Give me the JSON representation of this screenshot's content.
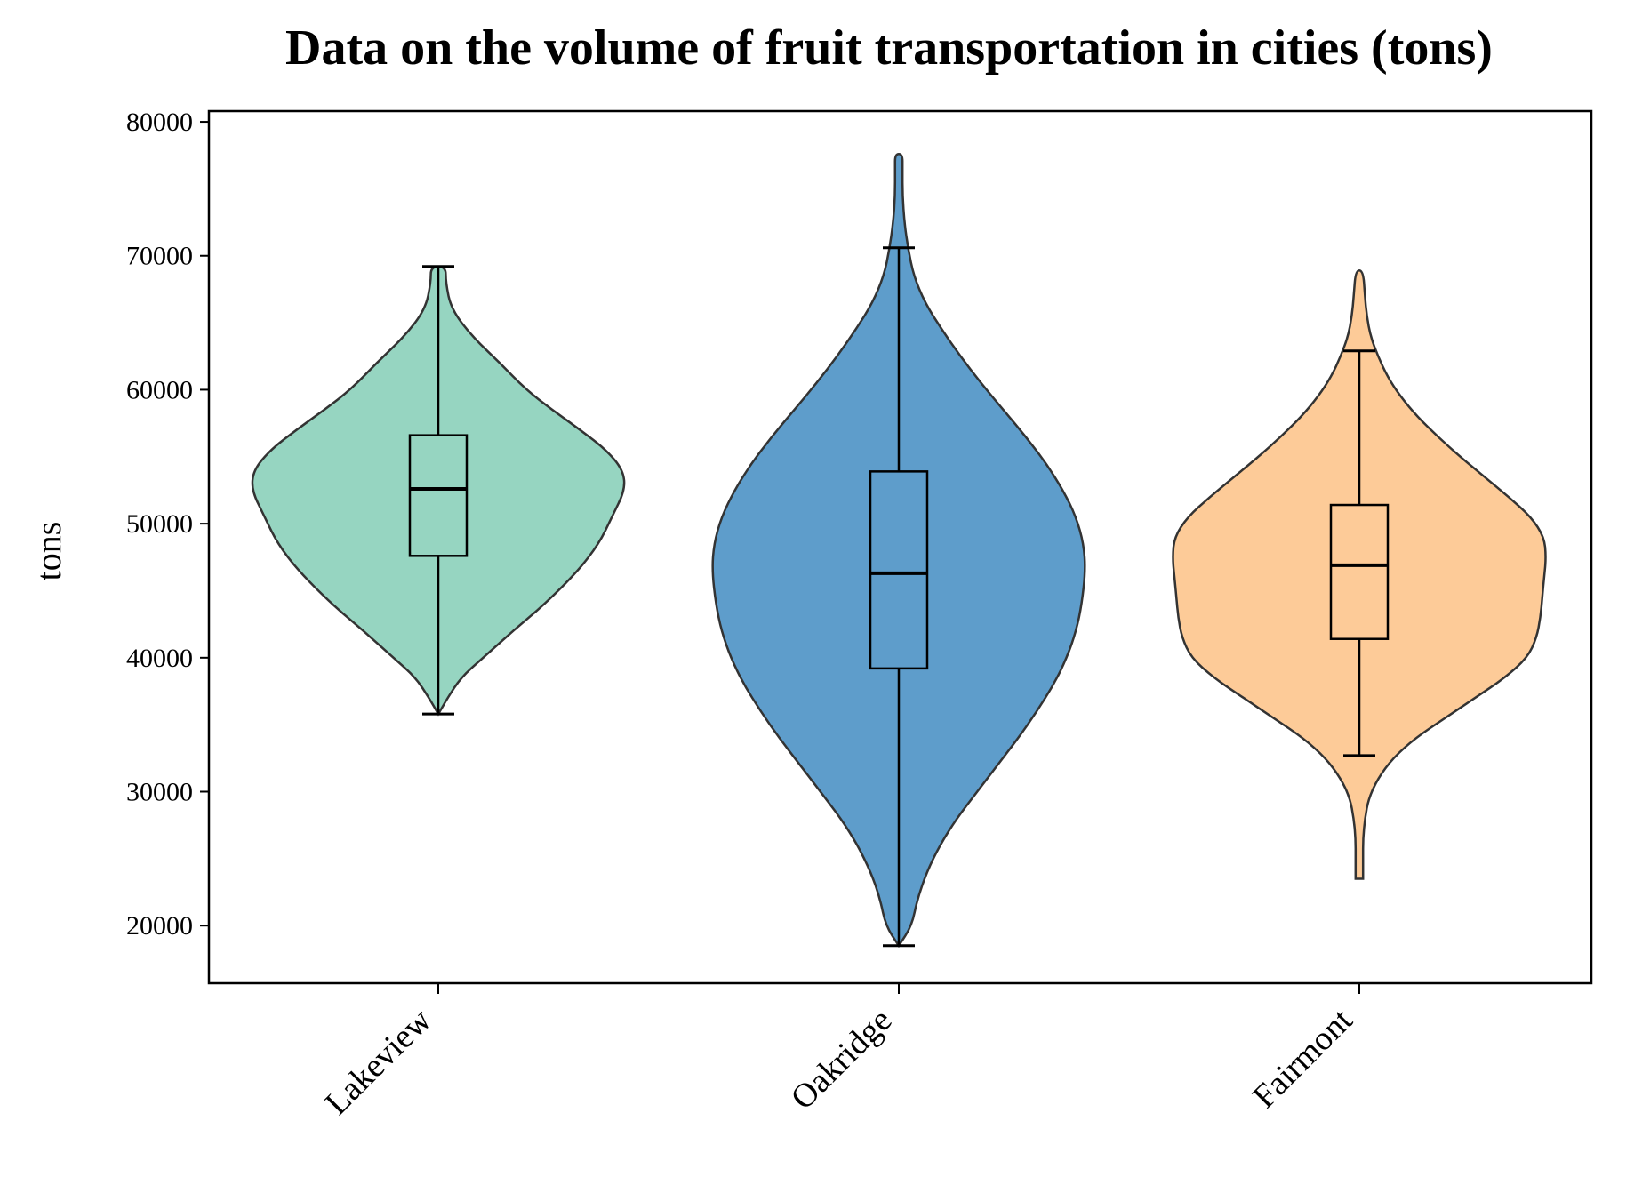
{
  "chart_data": {
    "type": "violin",
    "title": "Data on the volume of fruit transportation in cities (tons)",
    "xlabel": "",
    "ylabel": "tons",
    "ylim": [
      15700,
      80800
    ],
    "yticks": [
      20000,
      30000,
      40000,
      50000,
      60000,
      70000,
      80000
    ],
    "ytick_labels": [
      "20000",
      "30000",
      "40000",
      "50000",
      "60000",
      "70000",
      "80000"
    ],
    "grid": false,
    "categories": [
      "Lakeview",
      "Oakridge",
      "Fairmont"
    ],
    "series": [
      {
        "category": "Lakeview",
        "color": "#7fccb3",
        "min": 35800,
        "q1": 47600,
        "median": 52600,
        "q3": 56600,
        "whisker_high": 69200,
        "max": 69200,
        "density": [
          [
            35800,
            0.0
          ],
          [
            37000,
            0.05
          ],
          [
            38500,
            0.12
          ],
          [
            40000,
            0.24
          ],
          [
            42000,
            0.4
          ],
          [
            44000,
            0.57
          ],
          [
            46500,
            0.75
          ],
          [
            48500,
            0.86
          ],
          [
            50500,
            0.93
          ],
          [
            52500,
            1.0
          ],
          [
            54000,
            0.99
          ],
          [
            55500,
            0.9
          ],
          [
            57000,
            0.76
          ],
          [
            58500,
            0.61
          ],
          [
            60000,
            0.47
          ],
          [
            62000,
            0.33
          ],
          [
            64000,
            0.18
          ],
          [
            66000,
            0.07
          ],
          [
            68000,
            0.04
          ],
          [
            69200,
            0.04
          ]
        ]
      },
      {
        "category": "Oakridge",
        "color": "#3a87c0",
        "min": 18500,
        "q1": 39200,
        "median": 46300,
        "q3": 53900,
        "whisker_high": 70600,
        "max": 77600,
        "density": [
          [
            18500,
            0.0
          ],
          [
            20000,
            0.07
          ],
          [
            22000,
            0.1
          ],
          [
            24000,
            0.15
          ],
          [
            26000,
            0.22
          ],
          [
            28000,
            0.31
          ],
          [
            30000,
            0.42
          ],
          [
            32000,
            0.53
          ],
          [
            34000,
            0.64
          ],
          [
            36000,
            0.74
          ],
          [
            38000,
            0.83
          ],
          [
            40000,
            0.9
          ],
          [
            42000,
            0.95
          ],
          [
            44000,
            0.98
          ],
          [
            46500,
            1.0
          ],
          [
            48500,
            0.99
          ],
          [
            50500,
            0.95
          ],
          [
            52500,
            0.88
          ],
          [
            54500,
            0.79
          ],
          [
            56500,
            0.68
          ],
          [
            58500,
            0.56
          ],
          [
            60500,
            0.44
          ],
          [
            62500,
            0.33
          ],
          [
            64500,
            0.23
          ],
          [
            66500,
            0.14
          ],
          [
            68500,
            0.08
          ],
          [
            70500,
            0.05
          ],
          [
            72500,
            0.03
          ],
          [
            74500,
            0.02
          ],
          [
            76500,
            0.02
          ],
          [
            77600,
            0.02
          ]
        ]
      },
      {
        "category": "Fairmont",
        "color": "#fdbf81",
        "min": 23500,
        "q1": 41400,
        "median": 46900,
        "q3": 51400,
        "whisker_low": 32700,
        "whisker_high": 62900,
        "max": 68900,
        "density": [
          [
            23500,
            0.02
          ],
          [
            25000,
            0.02
          ],
          [
            26500,
            0.02
          ],
          [
            28000,
            0.03
          ],
          [
            29500,
            0.05
          ],
          [
            31000,
            0.1
          ],
          [
            32500,
            0.18
          ],
          [
            34000,
            0.3
          ],
          [
            35500,
            0.46
          ],
          [
            37000,
            0.62
          ],
          [
            38500,
            0.78
          ],
          [
            40000,
            0.9
          ],
          [
            41500,
            0.95
          ],
          [
            43000,
            0.97
          ],
          [
            44500,
            0.98
          ],
          [
            46000,
            0.99
          ],
          [
            47500,
            1.0
          ],
          [
            49000,
            0.99
          ],
          [
            50500,
            0.92
          ],
          [
            52000,
            0.8
          ],
          [
            53500,
            0.67
          ],
          [
            55000,
            0.54
          ],
          [
            56500,
            0.42
          ],
          [
            58000,
            0.31
          ],
          [
            59500,
            0.22
          ],
          [
            61000,
            0.15
          ],
          [
            62500,
            0.1
          ],
          [
            64000,
            0.06
          ],
          [
            65500,
            0.04
          ],
          [
            67000,
            0.03
          ],
          [
            68900,
            0.02
          ]
        ]
      }
    ]
  }
}
